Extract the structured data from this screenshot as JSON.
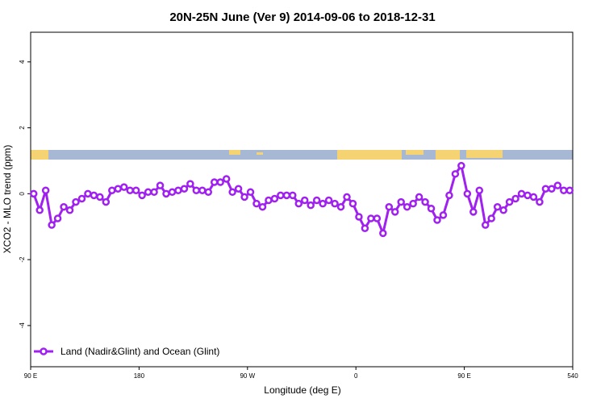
{
  "chart_data": {
    "type": "line",
    "title": "20N-25N June (Ver 9)   2014-09-06 to 2018-12-31",
    "x_label": "Longitude (deg E)",
    "y_label": "XCO2 - MLO trend (ppm)",
    "xlim": [
      90,
      540
    ],
    "ylim": [
      -5.25,
      4.9
    ],
    "xticks": [
      {
        "value": 90,
        "label": "90 E"
      },
      180,
      {
        "value": 270,
        "label": "90 W"
      },
      {
        "value": 360,
        "label": "0"
      },
      {
        "value": 450,
        "label": "90 E"
      },
      540
    ],
    "yticks": [
      -4,
      -2,
      0,
      2,
      4
    ],
    "legend": "bottom-left",
    "x": [
      92.5,
      97.5,
      102.5,
      107.5,
      112.5,
      117.5,
      122.5,
      127.5,
      132.5,
      137.5,
      142.5,
      147.5,
      152.5,
      157.5,
      162.5,
      167.5,
      172.5,
      177.5,
      182.5,
      187.5,
      192.5,
      197.5,
      202.5,
      207.5,
      212.5,
      217.5,
      222.5,
      227.5,
      232.5,
      237.5,
      242.5,
      247.5,
      252.5,
      257.5,
      262.5,
      267.5,
      272.5,
      277.5,
      282.5,
      287.5,
      292.5,
      297.5,
      302.5,
      307.5,
      312.5,
      317.5,
      322.5,
      327.5,
      332.5,
      337.5,
      342.5,
      347.5,
      352.5,
      357.5,
      362.5,
      367.5,
      372.5,
      377.5,
      382.5,
      387.5,
      392.5,
      397.5,
      402.5,
      407.5,
      412.5,
      417.5,
      422.5,
      427.5,
      432.5,
      437.5,
      442.5,
      447.5,
      452.5,
      457.5,
      462.5,
      467.5,
      472.5,
      477.5,
      482.5,
      487.5,
      492.5,
      497.5,
      502.5,
      507.5,
      512.5,
      517.5,
      522.5,
      527.5,
      532.5,
      537.5
    ],
    "series": [
      {
        "name": "Land (Nadir&Glint) and Ocean (Glint)",
        "color": "#a020f0",
        "values": [
          0,
          -0.5,
          0.1,
          -0.95,
          -0.75,
          -0.4,
          -0.5,
          -0.25,
          -0.15,
          0,
          -0.05,
          -0.1,
          -0.25,
          0.1,
          0.15,
          0.2,
          0.1,
          0.1,
          -0.05,
          0.05,
          0.05,
          0.25,
          0,
          0.05,
          0.1,
          0.15,
          0.3,
          0.1,
          0.1,
          0.05,
          0.35,
          0.35,
          0.45,
          0.05,
          0.15,
          -0.1,
          0.05,
          -0.3,
          -0.4,
          -0.2,
          -0.15,
          -0.05,
          -0.05,
          -0.05,
          -0.3,
          -0.2,
          -0.35,
          -0.2,
          -0.3,
          -0.2,
          -0.3,
          -0.4,
          -0.1,
          -0.3,
          -0.7,
          -1.05,
          -0.75,
          -0.75,
          -1.2,
          -0.4,
          -0.55,
          -0.25,
          -0.4,
          -0.3,
          -0.1,
          -0.25,
          -0.45,
          -0.8,
          -0.65,
          -0.05,
          0.6,
          0.85,
          0,
          -0.55,
          0.1,
          -0.95,
          -0.75,
          -0.4,
          -0.5,
          -0.25,
          -0.15,
          0,
          -0.05,
          -0.1,
          -0.25,
          0.15,
          0.15,
          0.25,
          0.1,
          0.1
        ]
      }
    ]
  }
}
